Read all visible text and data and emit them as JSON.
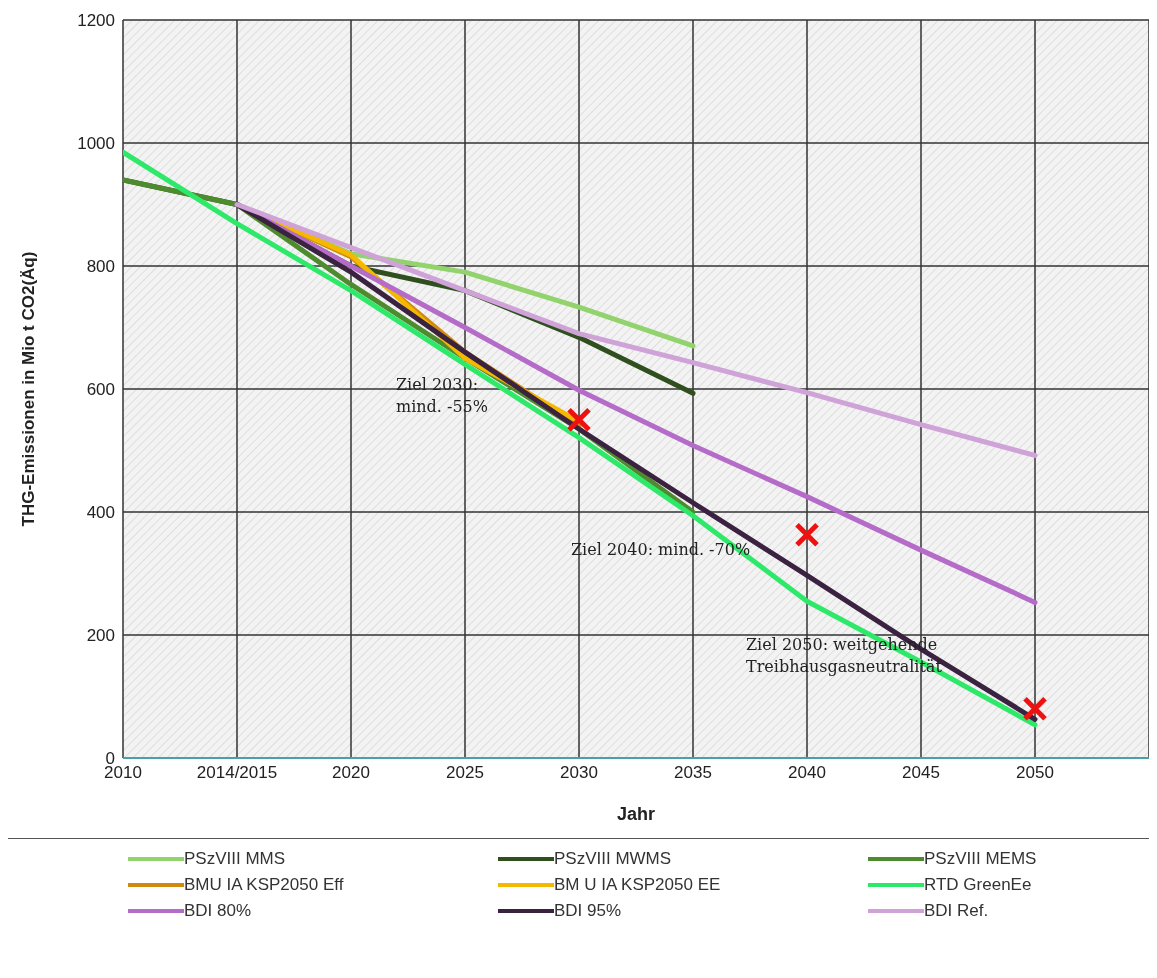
{
  "chart_data": {
    "type": "line",
    "xlabel": "Jahr",
    "ylabel": "THG-Emissionen  in Mio t CO2(Äq)",
    "categories": [
      "2010",
      "2014/2015",
      "2020",
      "2025",
      "2030",
      "2035",
      "2040",
      "2045",
      "2050",
      null
    ],
    "ylim": [
      0,
      1200
    ],
    "yticks": [
      0,
      200,
      400,
      600,
      800,
      1000,
      1200
    ],
    "grid": true,
    "legend": "bottom",
    "line_style": "solid",
    "series": [
      {
        "name": "PSzVIII MMS",
        "color": "#92d36e",
        "marker": "none",
        "values": [
          null,
          900,
          820,
          790,
          733,
          670,
          null,
          null,
          null,
          null
        ]
      },
      {
        "name": "PSzVIII MWMS",
        "color": "#2f4f1f",
        "marker": "none",
        "values": [
          940,
          900,
          800,
          760,
          684,
          593,
          null,
          null,
          null,
          null
        ]
      },
      {
        "name": "PSzVIII MEMS",
        "color": "#4e8a2e",
        "marker": "none",
        "values": [
          940,
          900,
          770,
          650,
          535,
          400,
          null,
          null,
          null,
          null
        ]
      },
      {
        "name": "BMU IA KSP2050 Eff",
        "color": "#d08a10",
        "marker": "none",
        "values": [
          null,
          900,
          815,
          660,
          540,
          null,
          null,
          null,
          null,
          null
        ]
      },
      {
        "name": "BM U IA KSP2050 EE",
        "color": "#f5b800",
        "marker": "none",
        "values": [
          null,
          900,
          818,
          650,
          547,
          null,
          null,
          null,
          null,
          null
        ]
      },
      {
        "name": "RTD GreenEe",
        "color": "#2ee86a",
        "marker": "none",
        "values": [
          985,
          869,
          760,
          640,
          521,
          394,
          255,
          156,
          54,
          null
        ]
      },
      {
        "name": "BDI 80%",
        "color": "#b46cc8",
        "marker": "none",
        "values": [
          null,
          900,
          800,
          700,
          598,
          508,
          425,
          338,
          253,
          null
        ]
      },
      {
        "name": "BDI 95%",
        "color": "#3a2240",
        "marker": "none",
        "values": [
          null,
          900,
          790,
          660,
          535,
          415,
          297,
          177,
          63,
          null
        ]
      },
      {
        "name": "BDI Ref.",
        "color": "#cfa3d8",
        "marker": "none",
        "values": [
          null,
          900,
          830,
          760,
          690,
          643,
          594,
          542,
          492,
          null
        ]
      },
      {
        "type": "scatter",
        "color": "#ee1111",
        "marker": "cross",
        "values": [
          null,
          null,
          null,
          null,
          550,
          null,
          363,
          null,
          80,
          null
        ]
      }
    ],
    "annotations": [
      "Ziel 2030:\nmind. -55%",
      "Ziel 2040: mind. -70%",
      "Ziel 2050: weitgehende\nTreibhausgasneutralität"
    ]
  }
}
